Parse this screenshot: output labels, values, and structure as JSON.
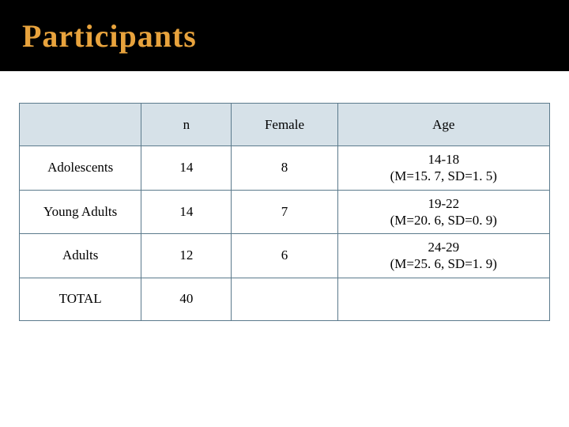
{
  "title": "Participants",
  "colors": {
    "title_bar_bg": "#000000",
    "title_text": "#e8a33d",
    "header_row_bg": "#d6e1e8",
    "cell_border": "#5b7a8c",
    "body_bg": "#ffffff",
    "cell_text": "#000000"
  },
  "table": {
    "columns": [
      "",
      "n",
      "Female",
      "Age"
    ],
    "rows": [
      {
        "label": "Adolescents",
        "n": "14",
        "female": "8",
        "age_range": "14-18",
        "age_stats": "(M=15. 7, SD=1. 5)"
      },
      {
        "label": "Young Adults",
        "n": "14",
        "female": "7",
        "age_range": "19-22",
        "age_stats": "(M=20. 6, SD=0. 9)"
      },
      {
        "label": "Adults",
        "n": "12",
        "female": "6",
        "age_range": "24-29",
        "age_stats": "(M=25. 6, SD=1. 9)"
      },
      {
        "label": "TOTAL",
        "n": "40",
        "female": "",
        "age_range": "",
        "age_stats": ""
      }
    ]
  }
}
